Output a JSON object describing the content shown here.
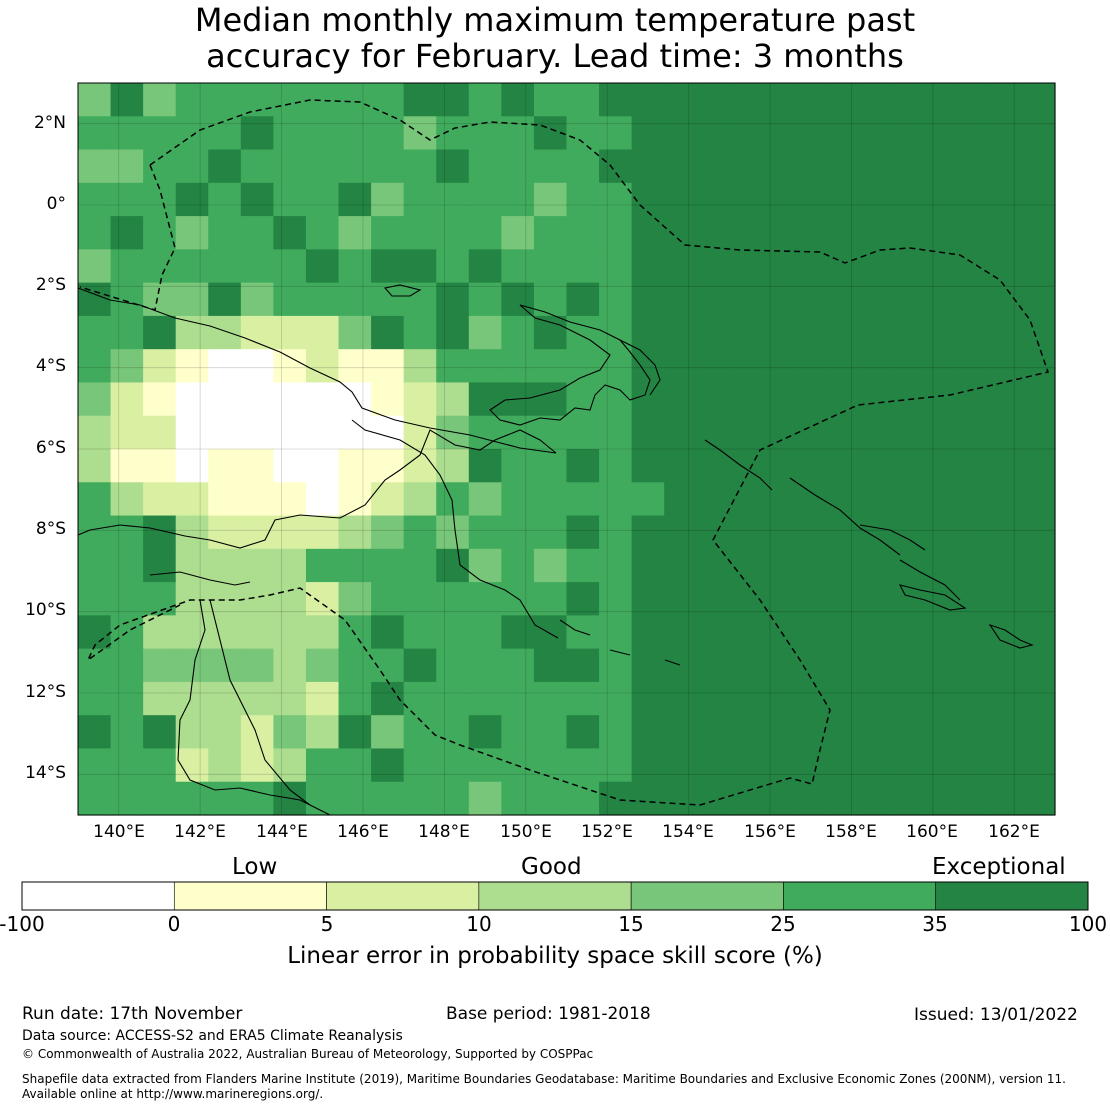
{
  "title": {
    "line1": "Median monthly maximum temperature past",
    "line2": "accuracy for February. Lead time: 3 months"
  },
  "map": {
    "lat_labels": [
      "2°N",
      "0°",
      "2°S",
      "4°S",
      "6°S",
      "8°S",
      "10°S",
      "12°S",
      "14°S"
    ],
    "lon_labels": [
      "140°E",
      "142°E",
      "144°E",
      "146°E",
      "148°E",
      "150°E",
      "152°E",
      "154°E",
      "156°E",
      "158°E",
      "160°E",
      "162°E"
    ],
    "lat_values": [
      2,
      0,
      -2,
      -4,
      -6,
      -8,
      -10,
      -12,
      -14
    ],
    "lon_values": [
      140,
      142,
      144,
      146,
      148,
      150,
      152,
      154,
      156,
      158,
      160,
      162
    ],
    "extent": {
      "lon_min": 139,
      "lon_max": 163,
      "lat_min": -15,
      "lat_max": 3
    }
  },
  "colorbar": {
    "categories": [
      "Low",
      "Good",
      "Exceptional"
    ],
    "ticks": [
      "-100",
      "0",
      "5",
      "10",
      "15",
      "25",
      "35",
      "100"
    ],
    "colors": [
      "#ffffff",
      "#ffffcc",
      "#d9f0a3",
      "#addd8e",
      "#78c679",
      "#41ab5d",
      "#238443"
    ],
    "title": "Linear error in probability space skill score (%)"
  },
  "footer": {
    "run_date": "Run date: 17th November",
    "base_period": "Base period: 1981-2018",
    "issued": "Issued: 13/01/2022",
    "data_source": "Data source: ACCESS-S2 and ERA5 Climate Reanalysis",
    "copyright": "© Commonwealth of Australia 2022, Australian Bureau of Meteorology, Supported by COSPPac",
    "shapefile_line1": "Shapefile data extracted from Flanders Marine Institute (2019), Maritime Boundaries Geodatabase: Maritime Boundaries and Exclusive Economic Zones (200NM), version 11.",
    "shapefile_line2": "Available online at http://www.marineregions.org/."
  }
}
